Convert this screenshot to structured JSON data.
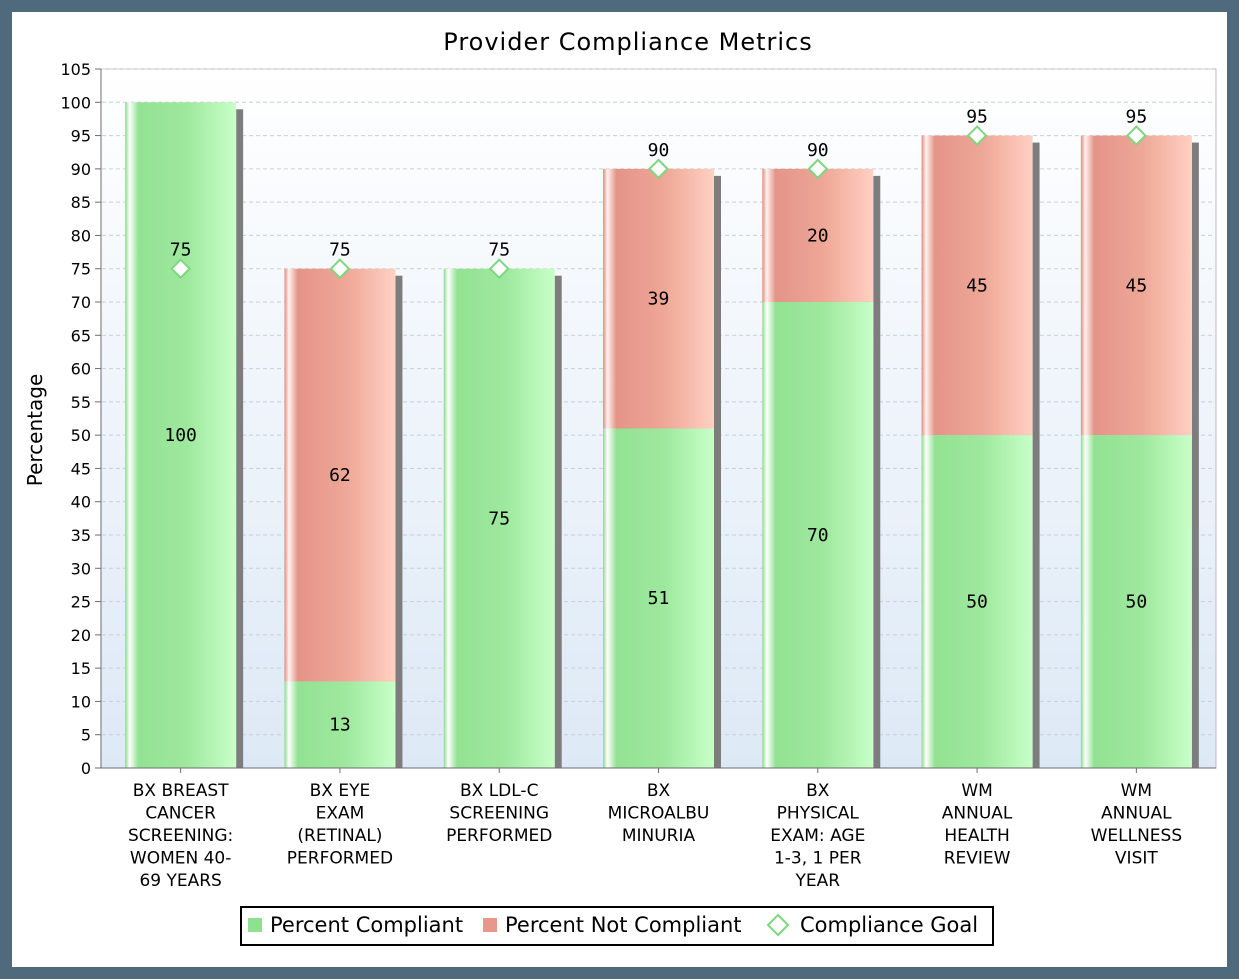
{
  "chart_data": {
    "type": "bar",
    "stacked": true,
    "title": "Provider Compliance Metrics",
    "xlabel": "",
    "ylabel": "Percentage",
    "ylim": [
      0,
      105
    ],
    "ytick_step": 5,
    "grid": true,
    "legend_position": "bottom",
    "categories": [
      [
        "BX BREAST",
        "CANCER",
        "SCREENING:",
        "WOMEN 40-",
        "69 YEARS"
      ],
      [
        "BX EYE",
        "EXAM",
        "(RETINAL)",
        "PERFORMED"
      ],
      [
        "BX LDL-C",
        "SCREENING",
        "PERFORMED"
      ],
      [
        "BX",
        "MICROALBU",
        "MINURIA"
      ],
      [
        "BX",
        "PHYSICAL",
        "EXAM: AGE",
        "1-3, 1 PER",
        "YEAR"
      ],
      [
        "WM",
        "ANNUAL",
        "HEALTH",
        "REVIEW"
      ],
      [
        "WM",
        "ANNUAL",
        "WELLNESS",
        "VISIT"
      ]
    ],
    "series": [
      {
        "name": "Percent Compliant",
        "type": "bar",
        "color": "#8fe08f",
        "values": [
          100,
          13,
          75,
          51,
          70,
          50,
          50
        ]
      },
      {
        "name": "Percent Not Compliant",
        "type": "bar",
        "color": "#e8978b",
        "values": [
          null,
          62,
          null,
          39,
          20,
          45,
          45
        ]
      },
      {
        "name": "Compliance Goal",
        "type": "marker",
        "color": "#7ed67e",
        "values": [
          75,
          75,
          75,
          90,
          90,
          95,
          95
        ]
      }
    ]
  }
}
